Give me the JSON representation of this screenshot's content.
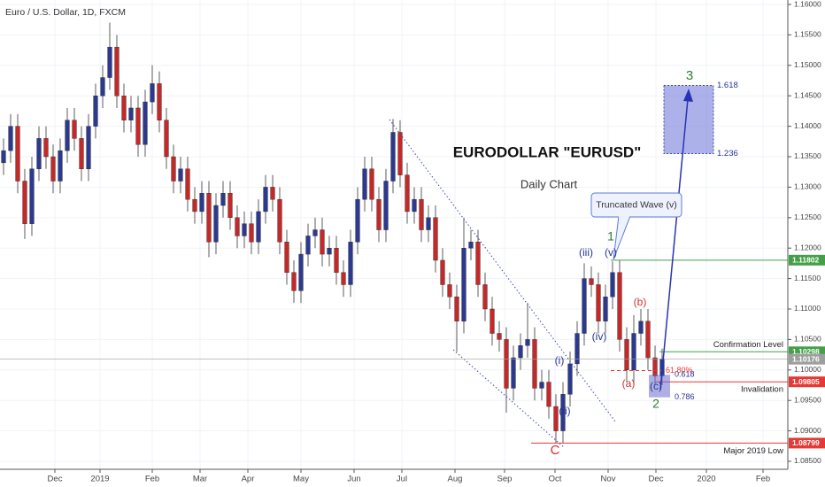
{
  "chart_data": {
    "type": "candlestick",
    "header": "Euro / U.S. Dollar, 1D, FXCM",
    "title": "EURODOLLAR \"EURUSD\"",
    "subtitle": "Daily Chart",
    "callout": "Truncated Wave (v)",
    "up_color": "#2b3990",
    "down_color": "#c62828",
    "grid": true,
    "x": [
      0,
      1,
      2,
      3,
      4,
      5,
      6,
      7,
      8,
      9,
      10,
      11,
      12,
      13,
      14,
      15,
      16,
      17,
      18,
      19,
      20,
      21,
      22,
      23,
      24,
      25,
      26,
      27,
      28,
      29,
      30,
      31,
      32,
      33,
      34,
      35,
      36,
      37,
      38,
      39,
      40,
      41,
      42,
      43,
      44,
      45,
      46,
      47,
      48,
      49,
      50,
      51,
      52,
      53,
      54,
      55,
      56,
      57,
      58,
      59,
      60,
      61,
      62,
      63,
      64,
      65,
      66,
      67,
      68,
      69,
      70,
      71,
      72,
      73,
      74,
      75,
      76,
      77,
      78,
      79,
      80,
      81,
      82,
      83,
      84,
      85,
      86,
      87,
      88,
      89,
      90,
      91,
      92,
      93
    ],
    "open": [
      1.134,
      1.136,
      1.14,
      1.131,
      1.124,
      1.133,
      1.138,
      1.135,
      1.131,
      1.136,
      1.141,
      1.138,
      1.133,
      1.14,
      1.145,
      1.148,
      1.153,
      1.145,
      1.141,
      1.143,
      1.137,
      1.144,
      1.147,
      1.141,
      1.135,
      1.131,
      1.133,
      1.128,
      1.126,
      1.129,
      1.121,
      1.127,
      1.129,
      1.125,
      1.122,
      1.124,
      1.121,
      1.126,
      1.13,
      1.128,
      1.121,
      1.116,
      1.113,
      1.119,
      1.122,
      1.123,
      1.119,
      1.12,
      1.116,
      1.114,
      1.121,
      1.128,
      1.133,
      1.128,
      1.123,
      1.131,
      1.139,
      1.132,
      1.126,
      1.128,
      1.123,
      1.125,
      1.118,
      1.114,
      1.112,
      1.108,
      1.12,
      1.121,
      1.114,
      1.11,
      1.106,
      1.105,
      1.097,
      1.102,
      1.104,
      1.105,
      1.097,
      1.098,
      1.094,
      1.09,
      1.096,
      1.101,
      1.106,
      1.115,
      1.114,
      1.108,
      1.112,
      1.116,
      1.105,
      1.1,
      1.106,
      1.108,
      1.102,
      1.099
    ],
    "high": [
      1.138,
      1.142,
      1.142,
      1.133,
      1.135,
      1.14,
      1.14,
      1.137,
      1.138,
      1.143,
      1.143,
      1.14,
      1.142,
      1.147,
      1.15,
      1.157,
      1.155,
      1.147,
      1.145,
      1.145,
      1.146,
      1.15,
      1.149,
      1.143,
      1.137,
      1.135,
      1.135,
      1.13,
      1.131,
      1.131,
      1.129,
      1.131,
      1.131,
      1.127,
      1.126,
      1.126,
      1.128,
      1.132,
      1.132,
      1.13,
      1.123,
      1.118,
      1.121,
      1.124,
      1.125,
      1.125,
      1.122,
      1.122,
      1.118,
      1.123,
      1.13,
      1.135,
      1.135,
      1.13,
      1.133,
      1.1412,
      1.141,
      1.134,
      1.13,
      1.13,
      1.127,
      1.127,
      1.12,
      1.116,
      1.114,
      1.125,
      1.123,
      1.123,
      1.116,
      1.112,
      1.108,
      1.107,
      1.104,
      1.106,
      1.111,
      1.107,
      1.1,
      1.1,
      1.096,
      1.098,
      1.103,
      1.108,
      1.1175,
      1.117,
      1.116,
      1.114,
      1.1178,
      1.118,
      1.107,
      1.109,
      1.11,
      1.11,
      1.104,
      1.1035
    ],
    "low": [
      1.132,
      1.134,
      1.129,
      1.1215,
      1.122,
      1.131,
      1.133,
      1.129,
      1.129,
      1.134,
      1.136,
      1.131,
      1.131,
      1.138,
      1.143,
      1.146,
      1.143,
      1.139,
      1.139,
      1.135,
      1.135,
      1.142,
      1.139,
      1.133,
      1.129,
      1.129,
      1.126,
      1.124,
      1.124,
      1.1185,
      1.119,
      1.125,
      1.123,
      1.12,
      1.12,
      1.119,
      1.119,
      1.124,
      1.126,
      1.119,
      1.114,
      1.111,
      1.111,
      1.117,
      1.12,
      1.117,
      1.117,
      1.114,
      1.112,
      1.112,
      1.119,
      1.126,
      1.126,
      1.121,
      1.121,
      1.129,
      1.13,
      1.124,
      1.124,
      1.121,
      1.121,
      1.116,
      1.112,
      1.11,
      1.103,
      1.106,
      1.118,
      1.112,
      1.108,
      1.104,
      1.103,
      1.093,
      1.095,
      1.1,
      1.102,
      1.095,
      1.095,
      1.092,
      1.088,
      1.088,
      1.094,
      1.099,
      1.104,
      1.112,
      1.106,
      1.106,
      1.11,
      1.103,
      1.098,
      1.098,
      1.104,
      1.1,
      1.0975,
      1.0975
    ],
    "close": [
      1.136,
      1.14,
      1.131,
      1.124,
      1.133,
      1.138,
      1.135,
      1.131,
      1.136,
      1.141,
      1.138,
      1.133,
      1.14,
      1.145,
      1.148,
      1.153,
      1.145,
      1.141,
      1.143,
      1.137,
      1.144,
      1.147,
      1.141,
      1.135,
      1.131,
      1.133,
      1.128,
      1.126,
      1.129,
      1.121,
      1.127,
      1.129,
      1.125,
      1.122,
      1.124,
      1.121,
      1.126,
      1.13,
      1.128,
      1.121,
      1.116,
      1.113,
      1.119,
      1.122,
      1.123,
      1.119,
      1.12,
      1.116,
      1.114,
      1.121,
      1.128,
      1.133,
      1.128,
      1.123,
      1.131,
      1.139,
      1.132,
      1.126,
      1.128,
      1.123,
      1.125,
      1.118,
      1.114,
      1.112,
      1.108,
      1.12,
      1.121,
      1.114,
      1.11,
      1.106,
      1.105,
      1.097,
      1.102,
      1.104,
      1.105,
      1.097,
      1.098,
      1.094,
      1.09,
      1.096,
      1.101,
      1.106,
      1.115,
      1.114,
      1.108,
      1.112,
      1.116,
      1.105,
      1.1,
      1.106,
      1.108,
      1.102,
      1.099,
      1.1018
    ],
    "xlim": [
      -0.5,
      110.75
    ],
    "xticks": [
      {
        "value": 7.25,
        "label": "Dec"
      },
      {
        "value": 13.625,
        "label": "2019"
      },
      {
        "value": 21,
        "label": "Feb"
      },
      {
        "value": 27.75,
        "label": "Mar"
      },
      {
        "value": 34.5,
        "label": "Apr"
      },
      {
        "value": 42,
        "label": "May"
      },
      {
        "value": 49.5,
        "label": "Jun"
      },
      {
        "value": 56.25,
        "label": "Jul"
      },
      {
        "value": 63.75,
        "label": "Aug"
      },
      {
        "value": 70.75,
        "label": "Sep"
      },
      {
        "value": 77.875,
        "label": "Oct"
      },
      {
        "value": 85.375,
        "label": "Nov"
      },
      {
        "value": 92.125,
        "label": "Dec"
      },
      {
        "value": 99.25,
        "label": "2020"
      },
      {
        "value": 107.25,
        "label": "Feb"
      }
    ],
    "ylim": [
      1.08369,
      1.160727
    ],
    "yticks": [
      {
        "value": 1.16,
        "label": "1.16000"
      },
      {
        "value": 1.155,
        "label": "1.15500"
      },
      {
        "value": 1.15,
        "label": "1.15000"
      },
      {
        "value": 1.145,
        "label": "1.14500"
      },
      {
        "value": 1.14,
        "label": "1.14000"
      },
      {
        "value": 1.135,
        "label": "1.13500"
      },
      {
        "value": 1.13,
        "label": "1.13000"
      },
      {
        "value": 1.125,
        "label": "1.12500"
      },
      {
        "value": 1.12,
        "label": "1.12000"
      },
      {
        "value": 1.115,
        "label": "1.11500"
      },
      {
        "value": 1.11,
        "label": "1.11000"
      },
      {
        "value": 1.105,
        "label": "1.10500"
      },
      {
        "value": 1.1,
        "label": "1.10000"
      },
      {
        "value": 1.095,
        "label": "1.09500"
      },
      {
        "value": 1.09,
        "label": "1.09000"
      },
      {
        "value": 1.085,
        "label": "1.08500"
      }
    ],
    "levels": [
      {
        "price": 1.11802,
        "color": "#43a047"
      },
      {
        "price": 1.10298,
        "color": "#43a047",
        "label": "Confirmation Level"
      },
      {
        "price": 1.10176,
        "color": "#9e9e9e"
      },
      {
        "price": 1.09805,
        "color": "#e53935",
        "label": "Invalidation"
      },
      {
        "price": 1.08799,
        "color": "#e53935",
        "label": "Major 2019 Low"
      }
    ],
    "targets": [
      {
        "ratio": 1.618,
        "price": 1.1467
      },
      {
        "ratio": 1.236,
        "price": 1.1355
      }
    ],
    "retracements": [
      {
        "ratio": 0.618,
        "price": 1.0992
      },
      {
        "ratio": 0.786,
        "price": 1.0955
      }
    ],
    "retracement_pct": {
      "value": 61.8,
      "label": "61.80%",
      "price": 1.0999
    },
    "wave_labels": [
      "3",
      "1",
      "2",
      "(iii)",
      "(v)",
      "(i)",
      "(ii)",
      "(iv)",
      "(a)",
      "(b)",
      "(c)",
      "C"
    ]
  }
}
